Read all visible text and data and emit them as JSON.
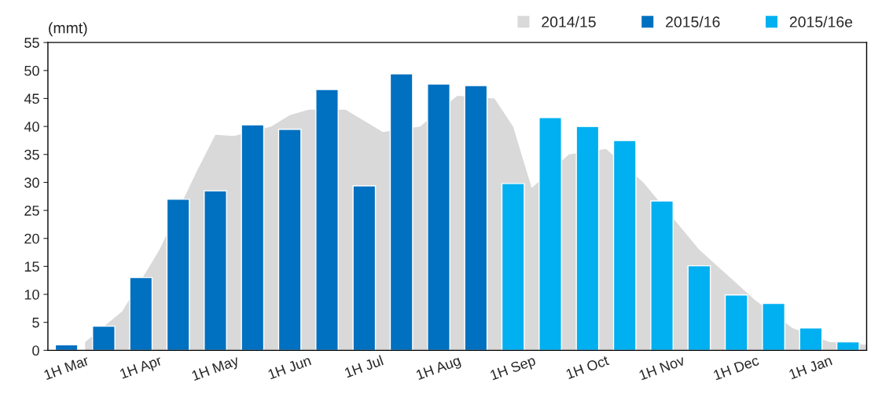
{
  "chart_data": {
    "type": "bar",
    "ylabel": "(mmt)",
    "categories": [
      "1H Mar",
      null,
      null,
      null,
      "1H Apr",
      null,
      null,
      null,
      "1H May",
      null,
      null,
      null,
      "1H Jun",
      null,
      null,
      null,
      "1H Jul",
      null,
      null,
      null,
      "1H Aug",
      null,
      null,
      null,
      "1H Sep",
      null,
      null,
      null,
      "1H Oct",
      null,
      null,
      null,
      "1H Nov",
      null,
      null,
      null,
      "1H Dec",
      null,
      null,
      null,
      "1H Jan",
      null,
      null,
      null
    ],
    "series": [
      {
        "name": "2014/15",
        "type": "area",
        "color": "#d9d9d9",
        "values": [
          null,
          1.5,
          null,
          7,
          null,
          18,
          null,
          32,
          38.5,
          38.3,
          null,
          40,
          42,
          43,
          null,
          43,
          41,
          39,
          null,
          40,
          null,
          45.5,
          null,
          45,
          40,
          29,
          null,
          35,
          null,
          36,
          null,
          30,
          null,
          22,
          18,
          15,
          12,
          9,
          null,
          4,
          null,
          1.5,
          null,
          1
        ]
      },
      {
        "name": "2015/16",
        "color": "#0070c0",
        "values": [
          1,
          null,
          4.3,
          null,
          13,
          null,
          27,
          null,
          28.5,
          null,
          40.3,
          null,
          39.5,
          null,
          46.6,
          null,
          29.4,
          null,
          49.4,
          null,
          47.6,
          null,
          47.3,
          null,
          null,
          null,
          null,
          null,
          null,
          null,
          null,
          null,
          null,
          null,
          null,
          null,
          null,
          null,
          null,
          null,
          null,
          null,
          null,
          null
        ]
      },
      {
        "name": "2015/16e",
        "color": "#00b0f0",
        "values": [
          null,
          null,
          null,
          null,
          null,
          null,
          null,
          null,
          null,
          null,
          null,
          null,
          null,
          null,
          null,
          null,
          null,
          null,
          null,
          null,
          null,
          null,
          null,
          null,
          29.8,
          null,
          41.6,
          null,
          40,
          null,
          37.5,
          null,
          26.7,
          null,
          15.1,
          null,
          9.9,
          null,
          8.4,
          null,
          4,
          null,
          1.5,
          null
        ]
      }
    ],
    "ylim": [
      0,
      55
    ],
    "yticks": [
      0,
      5,
      10,
      15,
      20,
      25,
      30,
      35,
      40,
      45,
      50,
      55
    ],
    "grid": false,
    "legend": "top right"
  }
}
